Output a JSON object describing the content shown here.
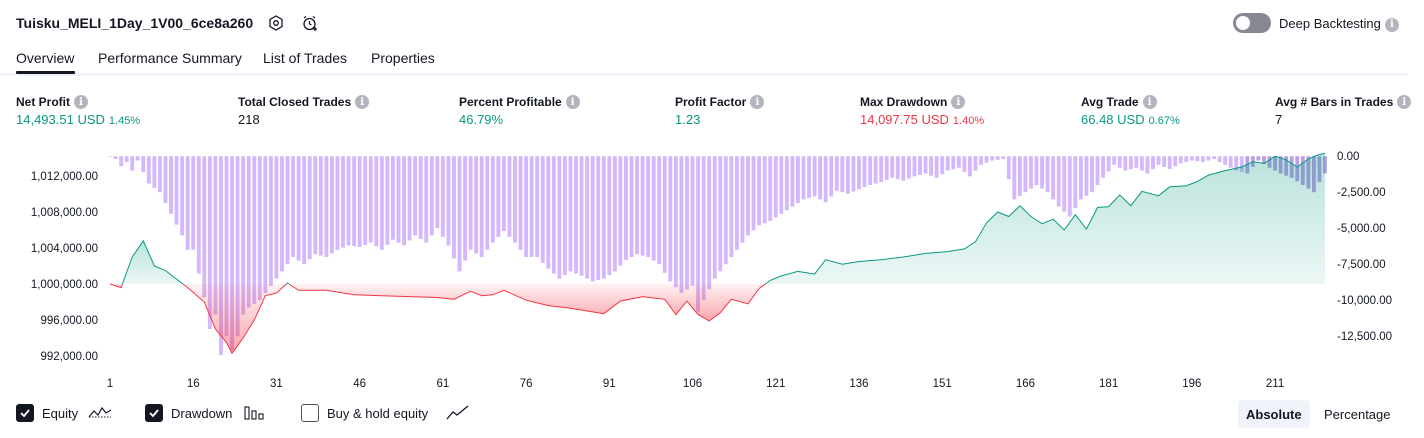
{
  "header": {
    "title": "Tuisku_MELI_1Day_1V00_6ce8a260",
    "settings_icon": "settings-hex-icon",
    "alert_icon": "alarm-add-icon",
    "deep_backtesting_label": "Deep Backtesting",
    "deep_backtesting_on": false
  },
  "tabs": [
    {
      "label": "Overview",
      "active": true
    },
    {
      "label": "Performance Summary",
      "active": false
    },
    {
      "label": "List of Trades",
      "active": false
    },
    {
      "label": "Properties",
      "active": false
    }
  ],
  "metrics": [
    {
      "label": "Net Profit",
      "value": "14,493.51 USD",
      "pct": "1.45%",
      "color": "#089981"
    },
    {
      "label": "Total Closed Trades",
      "value": "218",
      "pct": "",
      "color": "#131722"
    },
    {
      "label": "Percent Profitable",
      "value": "46.79%",
      "pct": "",
      "color": "#089981"
    },
    {
      "label": "Profit Factor",
      "value": "1.23",
      "pct": "",
      "color": "#089981"
    },
    {
      "label": "Max Drawdown",
      "value": "14,097.75 USD",
      "pct": "1.40%",
      "color": "#f23645"
    },
    {
      "label": "Avg Trade",
      "value": "66.48 USD",
      "pct": "0.67%",
      "color": "#089981"
    },
    {
      "label": "Avg # Bars in Trades",
      "value": "7",
      "pct": "",
      "color": "#131722"
    }
  ],
  "chart_data": {
    "type": "line",
    "x_tick_labels": [
      "1",
      "16",
      "31",
      "46",
      "61",
      "76",
      "91",
      "106",
      "121",
      "136",
      "151",
      "166",
      "181",
      "196",
      "211"
    ],
    "x_range": [
      1,
      220
    ],
    "left_axis": {
      "ticks": [
        "1,012,000.00",
        "1,008,000.00",
        "1,004,000.00",
        "1,000,000.00",
        "996,000.00",
        "992,000.00"
      ],
      "ylim": [
        991000,
        1015000
      ]
    },
    "right_axis": {
      "ticks": [
        "0.00",
        "-2,500.00",
        "-5,000.00",
        "-7,500.00",
        "-10,000.00",
        "-12,500.00"
      ],
      "ylim": [
        -14500,
        500
      ]
    },
    "baseline": 1000000,
    "equity_keypoints": [
      [
        1,
        1000000
      ],
      [
        3,
        999600
      ],
      [
        5,
        1003000
      ],
      [
        7,
        1004800
      ],
      [
        9,
        1002000
      ],
      [
        11,
        1001500
      ],
      [
        12,
        1001000
      ],
      [
        15,
        999600
      ],
      [
        18,
        998000
      ],
      [
        20,
        995000
      ],
      [
        22,
        993500
      ],
      [
        23,
        992300
      ],
      [
        25,
        994000
      ],
      [
        27,
        996000
      ],
      [
        29,
        998700
      ],
      [
        31,
        999000
      ],
      [
        33,
        1000100
      ],
      [
        35,
        999300
      ],
      [
        40,
        999300
      ],
      [
        45,
        998800
      ],
      [
        50,
        998700
      ],
      [
        55,
        998600
      ],
      [
        60,
        998500
      ],
      [
        63,
        998300
      ],
      [
        66,
        999200
      ],
      [
        68,
        998700
      ],
      [
        70,
        998800
      ],
      [
        72,
        999300
      ],
      [
        76,
        998200
      ],
      [
        80,
        997600
      ],
      [
        84,
        997300
      ],
      [
        87,
        997000
      ],
      [
        90,
        996700
      ],
      [
        93,
        998100
      ],
      [
        97,
        998600
      ],
      [
        101,
        998300
      ],
      [
        103,
        996600
      ],
      [
        105,
        998100
      ],
      [
        107,
        996600
      ],
      [
        109,
        995900
      ],
      [
        111,
        996800
      ],
      [
        113,
        998300
      ],
      [
        116,
        997800
      ],
      [
        118,
        999500
      ],
      [
        120,
        1000400
      ],
      [
        122,
        1000900
      ],
      [
        125,
        1001400
      ],
      [
        128,
        1001100
      ],
      [
        130,
        1002700
      ],
      [
        133,
        1002200
      ],
      [
        136,
        1002500
      ],
      [
        140,
        1002700
      ],
      [
        144,
        1003000
      ],
      [
        148,
        1003400
      ],
      [
        152,
        1003600
      ],
      [
        155,
        1003900
      ],
      [
        157,
        1004700
      ],
      [
        159,
        1006800
      ],
      [
        161,
        1008000
      ],
      [
        163,
        1007500
      ],
      [
        165,
        1008700
      ],
      [
        167,
        1007500
      ],
      [
        169,
        1006700
      ],
      [
        171,
        1007200
      ],
      [
        173,
        1006000
      ],
      [
        175,
        1007700
      ],
      [
        177,
        1006100
      ],
      [
        179,
        1008500
      ],
      [
        181,
        1008600
      ],
      [
        183,
        1009900
      ],
      [
        185,
        1008700
      ],
      [
        187,
        1010300
      ],
      [
        190,
        1009800
      ],
      [
        192,
        1010800
      ],
      [
        195,
        1010900
      ],
      [
        197,
        1011400
      ],
      [
        199,
        1012100
      ],
      [
        202,
        1012600
      ],
      [
        205,
        1013000
      ],
      [
        207,
        1013600
      ],
      [
        209,
        1013400
      ],
      [
        211,
        1014200
      ],
      [
        213,
        1013800
      ],
      [
        215,
        1013000
      ],
      [
        217,
        1013900
      ],
      [
        219,
        1014400
      ],
      [
        220,
        1014500
      ]
    ],
    "drawdown_keypoints": [
      [
        1,
        0
      ],
      [
        2,
        -200
      ],
      [
        3,
        -700
      ],
      [
        4,
        -400
      ],
      [
        5,
        -1000
      ],
      [
        6,
        -300
      ],
      [
        8,
        -1900
      ],
      [
        10,
        -2500
      ],
      [
        12,
        -4000
      ],
      [
        14,
        -5500
      ],
      [
        15,
        -6500
      ],
      [
        16,
        -6500
      ],
      [
        18,
        -9800
      ],
      [
        19,
        -12000
      ],
      [
        20,
        -11000
      ],
      [
        21,
        -13800
      ],
      [
        22,
        -12500
      ],
      [
        23,
        -13500
      ],
      [
        24,
        -12500
      ],
      [
        25,
        -11000
      ],
      [
        26,
        -10500
      ],
      [
        28,
        -10000
      ],
      [
        30,
        -9000
      ],
      [
        32,
        -8000
      ],
      [
        34,
        -7000
      ],
      [
        36,
        -7500
      ],
      [
        38,
        -6800
      ],
      [
        40,
        -7000
      ],
      [
        42,
        -6500
      ],
      [
        44,
        -6200
      ],
      [
        46,
        -6300
      ],
      [
        48,
        -6000
      ],
      [
        50,
        -6500
      ],
      [
        52,
        -5800
      ],
      [
        54,
        -6200
      ],
      [
        56,
        -5500
      ],
      [
        58,
        -6000
      ],
      [
        60,
        -5000
      ],
      [
        62,
        -6200
      ],
      [
        64,
        -8000
      ],
      [
        66,
        -6500
      ],
      [
        68,
        -7000
      ],
      [
        70,
        -6000
      ],
      [
        72,
        -5200
      ],
      [
        74,
        -6000
      ],
      [
        76,
        -7000
      ],
      [
        78,
        -7000
      ],
      [
        80,
        -7800
      ],
      [
        82,
        -8500
      ],
      [
        84,
        -8000
      ],
      [
        86,
        -8300
      ],
      [
        88,
        -8700
      ],
      [
        90,
        -8500
      ],
      [
        92,
        -8000
      ],
      [
        94,
        -7200
      ],
      [
        96,
        -6800
      ],
      [
        98,
        -7000
      ],
      [
        100,
        -7500
      ],
      [
        102,
        -8700
      ],
      [
        104,
        -9500
      ],
      [
        106,
        -9000
      ],
      [
        107,
        -10800
      ],
      [
        108,
        -10000
      ],
      [
        110,
        -8500
      ],
      [
        112,
        -7500
      ],
      [
        114,
        -6500
      ],
      [
        116,
        -5500
      ],
      [
        118,
        -4800
      ],
      [
        120,
        -4500
      ],
      [
        122,
        -4000
      ],
      [
        124,
        -3500
      ],
      [
        126,
        -3000
      ],
      [
        128,
        -2800
      ],
      [
        130,
        -3200
      ],
      [
        132,
        -2400
      ],
      [
        134,
        -2600
      ],
      [
        136,
        -2300
      ],
      [
        138,
        -2000
      ],
      [
        140,
        -1800
      ],
      [
        142,
        -1500
      ],
      [
        144,
        -1700
      ],
      [
        146,
        -1400
      ],
      [
        148,
        -1200
      ],
      [
        150,
        -1500
      ],
      [
        152,
        -1000
      ],
      [
        154,
        -800
      ],
      [
        156,
        -1400
      ],
      [
        158,
        -600
      ],
      [
        160,
        -300
      ],
      [
        162,
        -200
      ],
      [
        164,
        -3000
      ],
      [
        166,
        -2500
      ],
      [
        168,
        -2000
      ],
      [
        170,
        -2500
      ],
      [
        172,
        -3500
      ],
      [
        174,
        -4200
      ],
      [
        176,
        -3000
      ],
      [
        178,
        -2500
      ],
      [
        180,
        -1500
      ],
      [
        182,
        -600
      ],
      [
        184,
        -1000
      ],
      [
        186,
        -800
      ],
      [
        188,
        -1200
      ],
      [
        190,
        -600
      ],
      [
        192,
        -900
      ],
      [
        194,
        -500
      ],
      [
        196,
        -300
      ],
      [
        198,
        -400
      ],
      [
        200,
        -200
      ],
      [
        202,
        -600
      ],
      [
        204,
        -1000
      ],
      [
        206,
        -1200
      ],
      [
        208,
        -300
      ],
      [
        210,
        -800
      ],
      [
        212,
        -1200
      ],
      [
        214,
        -1500
      ],
      [
        216,
        -2000
      ],
      [
        218,
        -2500
      ],
      [
        219,
        -1800
      ],
      [
        220,
        -1200
      ]
    ],
    "colors": {
      "equity_line": "#089981",
      "equity_below_line": "#f23645",
      "equity_area_above": "#d2ede6",
      "equity_area_below": "#f9c6c9",
      "drawdown_bar": "#d4b8fb",
      "drawdown_bar_overlap": "#b9a0e6"
    }
  },
  "footer": {
    "checkboxes": [
      {
        "label": "Equity",
        "checked": true,
        "icon": "equity-line-icon"
      },
      {
        "label": "Drawdown",
        "checked": true,
        "icon": "drawdown-bars-icon"
      },
      {
        "label": "Buy & hold equity",
        "checked": false,
        "icon": "buy-hold-line-icon"
      }
    ],
    "modes": [
      {
        "label": "Absolute",
        "selected": true
      },
      {
        "label": "Percentage",
        "selected": false
      }
    ]
  }
}
